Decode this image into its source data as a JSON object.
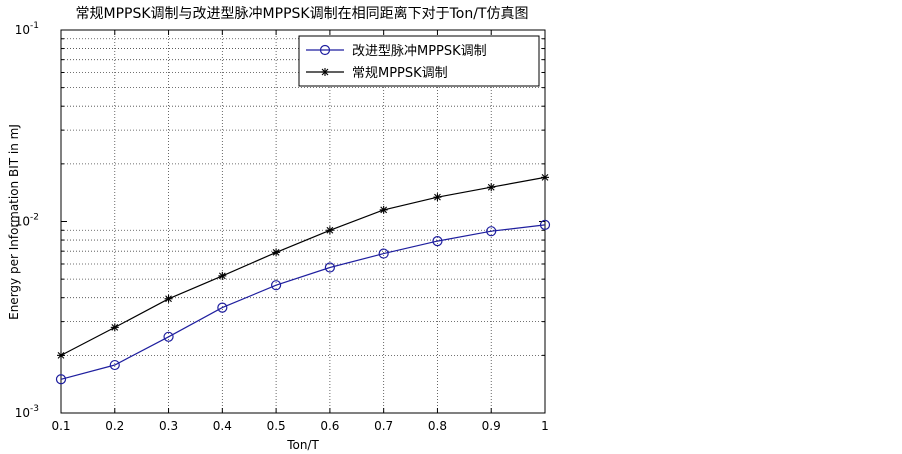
{
  "chart_data": {
    "type": "line",
    "title": "常规MPPSK调制与改进型脉冲MPPSK调制在相同距离下对于Ton/T仿真图",
    "xlabel": "Ton/T",
    "ylabel": "Energy per Information BIT in mJ",
    "x": [
      0.1,
      0.2,
      0.3,
      0.4,
      0.5,
      0.6,
      0.7,
      0.8,
      0.9,
      1.0
    ],
    "xlim": [
      0.1,
      1.0
    ],
    "x_tick_labels": [
      "0.1",
      "0.2",
      "0.3",
      "0.4",
      "0.5",
      "0.6",
      "0.7",
      "0.8",
      "0.9",
      "1"
    ],
    "yscale": "log",
    "ylim": [
      0.001,
      0.1
    ],
    "y_ticks": [
      {
        "base": "10",
        "exp": "-3"
      },
      {
        "base": "10",
        "exp": "-2"
      },
      {
        "base": "10",
        "exp": "-1"
      }
    ],
    "grid": true,
    "grid_style": "dotted",
    "legend_position": "top-right",
    "series": [
      {
        "name": "改进型脉冲MPPSK调制",
        "color": "#1f1f9f",
        "marker": "circle",
        "values": [
          0.0015,
          0.00178,
          0.0025,
          0.00355,
          0.00465,
          0.00575,
          0.0068,
          0.0079,
          0.0089,
          0.0096
        ]
      },
      {
        "name": "常规MPPSK调制",
        "color": "#000000",
        "marker": "star",
        "values": [
          0.002,
          0.0028,
          0.00395,
          0.0052,
          0.0069,
          0.009,
          0.0115,
          0.0134,
          0.0151,
          0.017
        ]
      }
    ]
  }
}
